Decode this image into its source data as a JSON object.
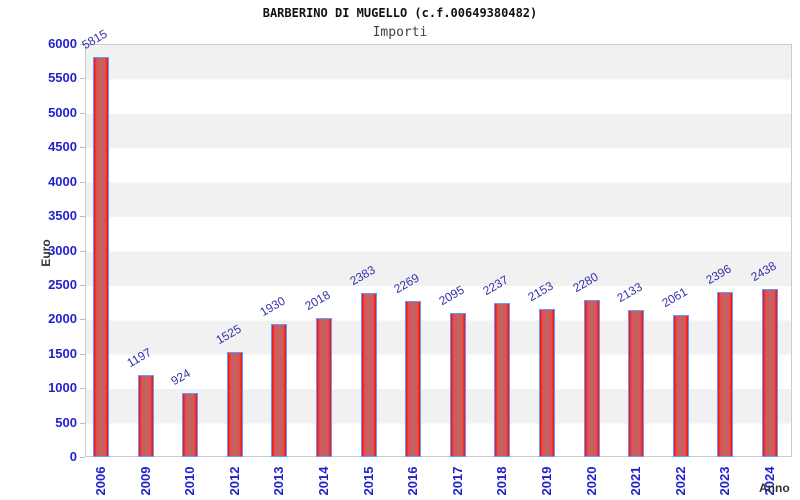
{
  "chart_data": {
    "type": "bar",
    "title": "BARBERINO DI MUGELLO (c.f.00649380482)",
    "subtitle": "Importi",
    "xlabel": "Anno",
    "ylabel": "Euro",
    "categories": [
      "2006",
      "2009",
      "2010",
      "2012",
      "2013",
      "2014",
      "2015",
      "2016",
      "2017",
      "2018",
      "2019",
      "2020",
      "2021",
      "2022",
      "2023",
      "2024"
    ],
    "values": [
      5815,
      1197,
      924,
      1525,
      1930,
      2018,
      2383,
      2269,
      2095,
      2237,
      2153,
      2280,
      2133,
      2061,
      2396,
      2438
    ],
    "ylim": [
      0,
      6000
    ],
    "ytick_step": 500,
    "yticks": [
      0,
      500,
      1000,
      1500,
      2000,
      2500,
      3000,
      3500,
      4000,
      4500,
      5000,
      5500,
      6000
    ],
    "grid": "banded-horizontal",
    "legend": "none",
    "colors": {
      "bar_edge": "#f01010",
      "bar_center": "#b86868",
      "bar_border": "#6699ff",
      "tick_text": "#2222cc",
      "value_label_text": "#3333aa",
      "axis_title_text": "#333333",
      "band_gray": "#f1f1f1",
      "plot_border": "#cccccc",
      "title_text": "#111111",
      "subtitle_text": "#444444"
    }
  }
}
